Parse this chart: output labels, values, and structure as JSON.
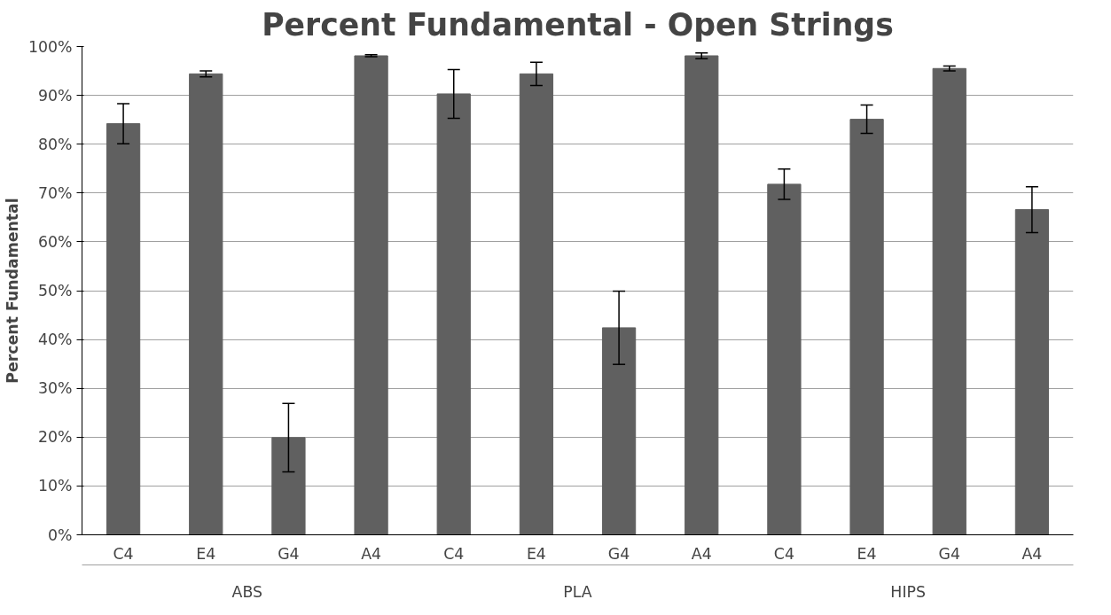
{
  "chart_data": {
    "type": "bar",
    "title": "Percent Fundamental - Open Strings",
    "ylabel": "Percent Fundamental",
    "categories": [
      "C4",
      "E4",
      "G4",
      "A4",
      "C4",
      "E4",
      "G4",
      "A4",
      "C4",
      "E4",
      "G4",
      "A4"
    ],
    "values": [
      84.2,
      94.4,
      19.9,
      98.1,
      90.3,
      94.4,
      42.4,
      98.1,
      71.8,
      85.1,
      95.5,
      66.6
    ],
    "errors": [
      4.1,
      0.6,
      7,
      0.2,
      5,
      2.4,
      7.5,
      0.6,
      3.1,
      2.9,
      0.5,
      4.7
    ],
    "color": "#606060",
    "annotations": [
      "ABS",
      "PLA",
      "HIPS"
    ],
    "ylim": [
      0,
      100
    ],
    "yticks": [
      {
        "value": 0,
        "label": "0%"
      },
      {
        "value": 10,
        "label": "10%"
      },
      {
        "value": 20,
        "label": "20%"
      },
      {
        "value": 30,
        "label": "30%"
      },
      {
        "value": 40,
        "label": "40%"
      },
      {
        "value": 50,
        "label": "50%"
      },
      {
        "value": 60,
        "label": "60%"
      },
      {
        "value": 70,
        "label": "70%"
      },
      {
        "value": 80,
        "label": "80%"
      },
      {
        "value": 90,
        "label": "90%"
      },
      {
        "value": 100,
        "label": "100%"
      }
    ],
    "grid": "y"
  }
}
